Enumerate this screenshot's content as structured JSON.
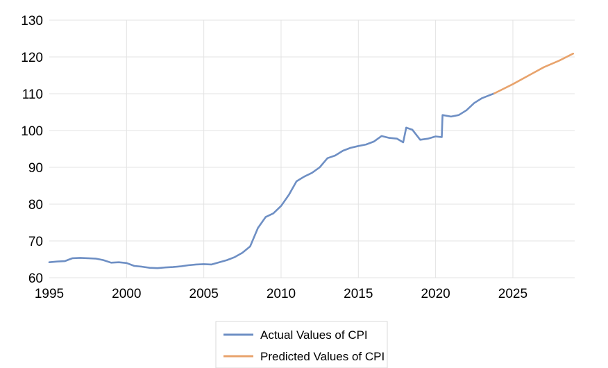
{
  "chart_data": {
    "type": "line",
    "title": "",
    "xlabel": "",
    "ylabel": "",
    "xlim": [
      1995,
      2029
    ],
    "ylim": [
      60,
      130
    ],
    "x_ticks": [
      1995,
      2000,
      2005,
      2010,
      2015,
      2020,
      2025
    ],
    "y_ticks": [
      60,
      70,
      80,
      90,
      100,
      110,
      120,
      130
    ],
    "grid": "on",
    "legend_position": "bottom-center",
    "series": [
      {
        "name": "Actual Values of CPI",
        "color": "#6e8fc4",
        "points": [
          [
            1995.0,
            64.2
          ],
          [
            1995.5,
            64.4
          ],
          [
            1996.0,
            64.5
          ],
          [
            1996.5,
            65.3
          ],
          [
            1997.0,
            65.4
          ],
          [
            1997.5,
            65.3
          ],
          [
            1998.0,
            65.2
          ],
          [
            1998.5,
            64.8
          ],
          [
            1999.0,
            64.1
          ],
          [
            1999.5,
            64.2
          ],
          [
            2000.0,
            64.0
          ],
          [
            2000.5,
            63.2
          ],
          [
            2001.0,
            63.0
          ],
          [
            2001.5,
            62.7
          ],
          [
            2002.0,
            62.6
          ],
          [
            2002.5,
            62.8
          ],
          [
            2003.0,
            62.9
          ],
          [
            2003.5,
            63.1
          ],
          [
            2004.0,
            63.4
          ],
          [
            2004.5,
            63.6
          ],
          [
            2005.0,
            63.7
          ],
          [
            2005.5,
            63.6
          ],
          [
            2006.0,
            64.2
          ],
          [
            2006.5,
            64.8
          ],
          [
            2007.0,
            65.6
          ],
          [
            2007.5,
            66.8
          ],
          [
            2008.0,
            68.5
          ],
          [
            2008.5,
            73.5
          ],
          [
            2009.0,
            76.5
          ],
          [
            2009.5,
            77.5
          ],
          [
            2010.0,
            79.5
          ],
          [
            2010.5,
            82.5
          ],
          [
            2011.0,
            86.2
          ],
          [
            2011.5,
            87.5
          ],
          [
            2012.0,
            88.5
          ],
          [
            2012.5,
            90.0
          ],
          [
            2013.0,
            92.5
          ],
          [
            2013.5,
            93.2
          ],
          [
            2014.0,
            94.5
          ],
          [
            2014.5,
            95.3
          ],
          [
            2015.0,
            95.8
          ],
          [
            2015.5,
            96.2
          ],
          [
            2016.0,
            97.0
          ],
          [
            2016.5,
            98.5
          ],
          [
            2017.0,
            98.0
          ],
          [
            2017.5,
            97.8
          ],
          [
            2017.9,
            96.8
          ],
          [
            2018.1,
            100.8
          ],
          [
            2018.5,
            100.2
          ],
          [
            2019.0,
            97.5
          ],
          [
            2019.5,
            97.8
          ],
          [
            2020.0,
            98.4
          ],
          [
            2020.4,
            98.2
          ],
          [
            2020.45,
            104.2
          ],
          [
            2021.0,
            103.8
          ],
          [
            2021.5,
            104.2
          ],
          [
            2022.0,
            105.5
          ],
          [
            2022.5,
            107.5
          ],
          [
            2023.0,
            108.8
          ],
          [
            2023.5,
            109.6
          ],
          [
            2023.8,
            110.1
          ]
        ]
      },
      {
        "name": "Predicted Values of CPI",
        "color": "#e8a36c",
        "points": [
          [
            2023.8,
            110.1
          ],
          [
            2025.0,
            112.6
          ],
          [
            2026.0,
            114.9
          ],
          [
            2027.0,
            117.2
          ],
          [
            2028.0,
            119.0
          ],
          [
            2028.9,
            120.9
          ]
        ]
      }
    ]
  }
}
